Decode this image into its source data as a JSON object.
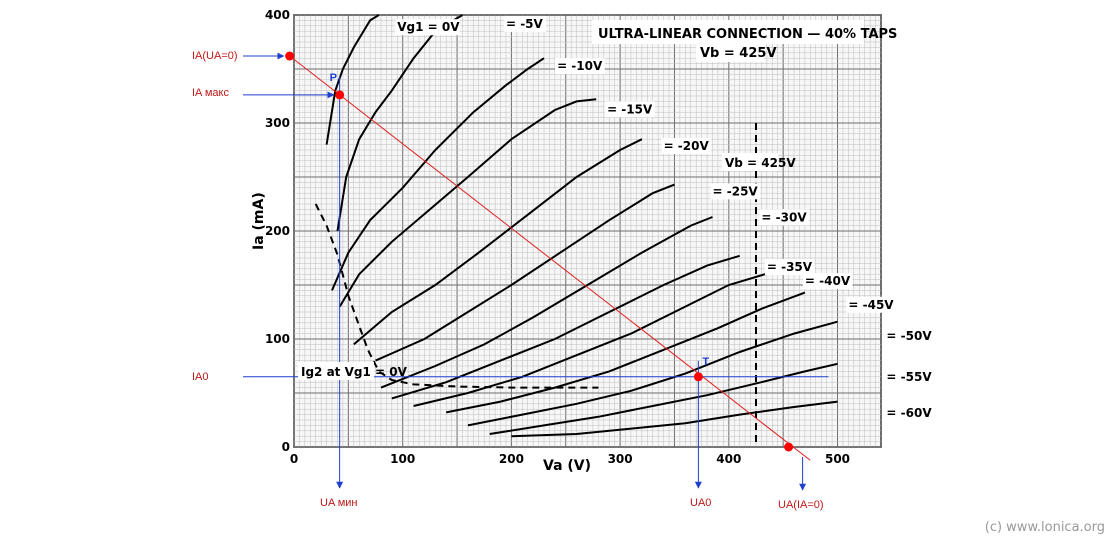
{
  "colors": {
    "grid_minor": "#bdbdbd",
    "grid_major": "#6e6e6e",
    "curve": "#000000",
    "load_line": "#e02020",
    "marker": "#ff0000",
    "ann_line": "#1f3fd0",
    "ann_text": "#c01818",
    "point_label": "#1f3fd0"
  },
  "chart_data": {
    "type": "line",
    "title": "ULTRA-LINEAR CONNECTION — 40% TAPS",
    "subtitle": "Vb = 425V",
    "xlabel": "Va (V)",
    "ylabel": "Ia (mA)",
    "xlim": [
      0,
      540
    ],
    "ylim": [
      0,
      400
    ],
    "x_ticks": [
      0,
      100,
      200,
      300,
      400,
      500
    ],
    "y_ticks": [
      0,
      100,
      200,
      300,
      400
    ],
    "grid": true,
    "series": [
      {
        "name": "Vg1 = 0V",
        "label": "Vg1 = 0V",
        "label_at": [
          95,
          385
        ],
        "points": [
          [
            30,
            280
          ],
          [
            38,
            330
          ],
          [
            45,
            350
          ],
          [
            55,
            370
          ],
          [
            70,
            395
          ],
          [
            78,
            400
          ]
        ]
      },
      {
        "name": "-5V",
        "label": "= -5V",
        "label_at": [
          195,
          388
        ],
        "points": [
          [
            40,
            200
          ],
          [
            48,
            250
          ],
          [
            60,
            285
          ],
          [
            75,
            310
          ],
          [
            90,
            330
          ],
          [
            110,
            360
          ],
          [
            130,
            385
          ],
          [
            155,
            400
          ]
        ]
      },
      {
        "name": "-10V",
        "label": "= -10V",
        "label_at": [
          242,
          349
        ],
        "points": [
          [
            35,
            145
          ],
          [
            50,
            180
          ],
          [
            70,
            210
          ],
          [
            100,
            240
          ],
          [
            130,
            275
          ],
          [
            165,
            310
          ],
          [
            195,
            335
          ],
          [
            215,
            350
          ],
          [
            230,
            360
          ]
        ]
      },
      {
        "name": "-15V",
        "label": "= -15V",
        "label_at": [
          288,
          309
        ],
        "points": [
          [
            42,
            130
          ],
          [
            60,
            160
          ],
          [
            90,
            190
          ],
          [
            125,
            220
          ],
          [
            160,
            250
          ],
          [
            200,
            285
          ],
          [
            240,
            312
          ],
          [
            260,
            320
          ],
          [
            278,
            322
          ]
        ]
      },
      {
        "name": "-20V",
        "label": "= -20V",
        "label_at": [
          340,
          275
        ],
        "points": [
          [
            55,
            95
          ],
          [
            90,
            125
          ],
          [
            130,
            150
          ],
          [
            170,
            180
          ],
          [
            215,
            215
          ],
          [
            260,
            250
          ],
          [
            300,
            275
          ],
          [
            320,
            285
          ]
        ]
      },
      {
        "name": "-25V",
        "label": "= -25V",
        "label_at": [
          385,
          233
        ],
        "points": [
          [
            75,
            80
          ],
          [
            120,
            100
          ],
          [
            160,
            125
          ],
          [
            200,
            150
          ],
          [
            245,
            180
          ],
          [
            290,
            210
          ],
          [
            330,
            235
          ],
          [
            350,
            243
          ]
        ]
      },
      {
        "name": "-30V",
        "label": "= -30V",
        "label_at": [
          430,
          209
        ],
        "points": [
          [
            80,
            55
          ],
          [
            130,
            75
          ],
          [
            175,
            95
          ],
          [
            220,
            120
          ],
          [
            270,
            150
          ],
          [
            320,
            180
          ],
          [
            365,
            205
          ],
          [
            385,
            213
          ]
        ]
      },
      {
        "name": "-35V",
        "label": "= -35V",
        "label_at": [
          435,
          163
        ],
        "points": [
          [
            90,
            45
          ],
          [
            140,
            60
          ],
          [
            190,
            80
          ],
          [
            240,
            100
          ],
          [
            290,
            125
          ],
          [
            340,
            150
          ],
          [
            380,
            168
          ],
          [
            410,
            177
          ]
        ]
      },
      {
        "name": "-40V",
        "label": "= -40V",
        "label_at": [
          470,
          150
        ],
        "points": [
          [
            110,
            38
          ],
          [
            160,
            50
          ],
          [
            210,
            65
          ],
          [
            260,
            85
          ],
          [
            310,
            105
          ],
          [
            360,
            130
          ],
          [
            400,
            150
          ],
          [
            440,
            162
          ]
        ]
      },
      {
        "name": "-45V",
        "label": "= -45V",
        "label_at": [
          510,
          128
        ],
        "points": [
          [
            140,
            32
          ],
          [
            190,
            42
          ],
          [
            240,
            55
          ],
          [
            290,
            70
          ],
          [
            340,
            90
          ],
          [
            390,
            110
          ],
          [
            430,
            128
          ],
          [
            470,
            143
          ]
        ]
      },
      {
        "name": "-50V",
        "label": "= -50V",
        "label_at": [
          545,
          99
        ],
        "points": [
          [
            160,
            20
          ],
          [
            210,
            30
          ],
          [
            260,
            40
          ],
          [
            310,
            52
          ],
          [
            360,
            68
          ],
          [
            410,
            88
          ],
          [
            460,
            105
          ],
          [
            500,
            116
          ]
        ]
      },
      {
        "name": "-55V",
        "label": "= -55V",
        "label_at": [
          545,
          61
        ],
        "points": [
          [
            180,
            12
          ],
          [
            230,
            20
          ],
          [
            280,
            28
          ],
          [
            330,
            38
          ],
          [
            380,
            48
          ],
          [
            430,
            60
          ],
          [
            470,
            70
          ],
          [
            500,
            77
          ]
        ]
      },
      {
        "name": "-60V",
        "label": "= -60V",
        "label_at": [
          545,
          28
        ],
        "points": [
          [
            200,
            10
          ],
          [
            260,
            12
          ],
          [
            310,
            17
          ],
          [
            360,
            22
          ],
          [
            410,
            30
          ],
          [
            460,
            37
          ],
          [
            500,
            42
          ]
        ]
      }
    ],
    "screen_grid_curve": {
      "label": "Ig2 at Vg1 = 0V",
      "points": [
        [
          20,
          225
        ],
        [
          30,
          205
        ],
        [
          40,
          178
        ],
        [
          50,
          140
        ],
        [
          60,
          112
        ],
        [
          68,
          90
        ],
        [
          78,
          70
        ],
        [
          90,
          62
        ],
        [
          110,
          58
        ],
        [
          150,
          56
        ],
        [
          200,
          55
        ],
        [
          280,
          55
        ]
      ]
    },
    "vb_line": {
      "x": 425,
      "label": "Vb = 425V"
    },
    "load_line": {
      "points": [
        [
          -4,
          362
        ],
        [
          462,
          -3
        ]
      ]
    },
    "points": [
      {
        "name": "IA(UA=0)",
        "x": -4,
        "y": 362
      },
      {
        "name": "P",
        "label": "P",
        "x": 42,
        "y": 326
      },
      {
        "name": "T",
        "label": "T",
        "x": 372,
        "y": 65
      },
      {
        "name": "UA(IA=0)",
        "x": 455,
        "y": 0
      }
    ]
  },
  "annotations": {
    "ia_ua0": "IA(UA=0)",
    "ia_max": "IA макс",
    "ia0": "IA0",
    "ua_min": "UA мин",
    "ua0": "UA0",
    "ua_ia0": "UA(IA=0)"
  },
  "copyright": "(c) www.lonica.org"
}
